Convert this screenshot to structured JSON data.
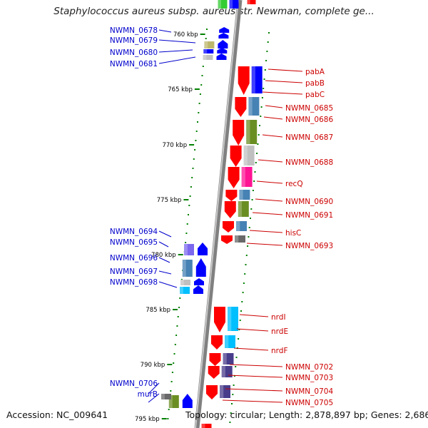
{
  "title": "Staphylococcus aureus subsp. aureus str. Newman, complete ge...",
  "footer": {
    "accession": "Accession: NC_009641",
    "summary": "Topology: circular; Length: 2,878,897 bp; Genes: 2,686"
  },
  "colors": {
    "backbone": "#808080",
    "forward_label": "#0000cc",
    "reverse_label": "#cc0000",
    "tick": "#008000",
    "cds_forward": "#0000ff",
    "cds_reverse": "#ff0000",
    "olive": "#6b8e23",
    "steelblue": "#4682b4",
    "silver": "#c0c0c0",
    "magenta": "#ff1493",
    "cyan": "#00bfff",
    "darkslateblue": "#483d8b",
    "slate": "#7b68ee",
    "khaki": "#bdb76b",
    "dimgray": "#696969",
    "green": "#32cd32"
  },
  "kbp_ticks": [
    "760 kbp",
    "765 kbp",
    "770 kbp",
    "775 kbp",
    "780 kbp",
    "785 kbp",
    "790 kbp",
    "795 kbp"
  ],
  "forward_genes": [
    "NWMN_0678",
    "NWMN_0679",
    "NWMN_0680",
    "NWMN_0681",
    "NWMN_0694",
    "NWMN_0695",
    "NWMN_0696",
    "NWMN_0697",
    "NWMN_0698",
    "NWMN_0706",
    "murB"
  ],
  "reverse_genes": [
    "pabA",
    "pabB",
    "pabC",
    "NWMN_0685",
    "NWMN_0686",
    "NWMN_0687",
    "NWMN_0688",
    "recQ",
    "NWMN_0690",
    "NWMN_0691",
    "hisC",
    "NWMN_0693",
    "nrdI",
    "nrdE",
    "nrdF",
    "NWMN_0702",
    "NWMN_0703",
    "NWMN_0704",
    "NWMN_0705"
  ]
}
